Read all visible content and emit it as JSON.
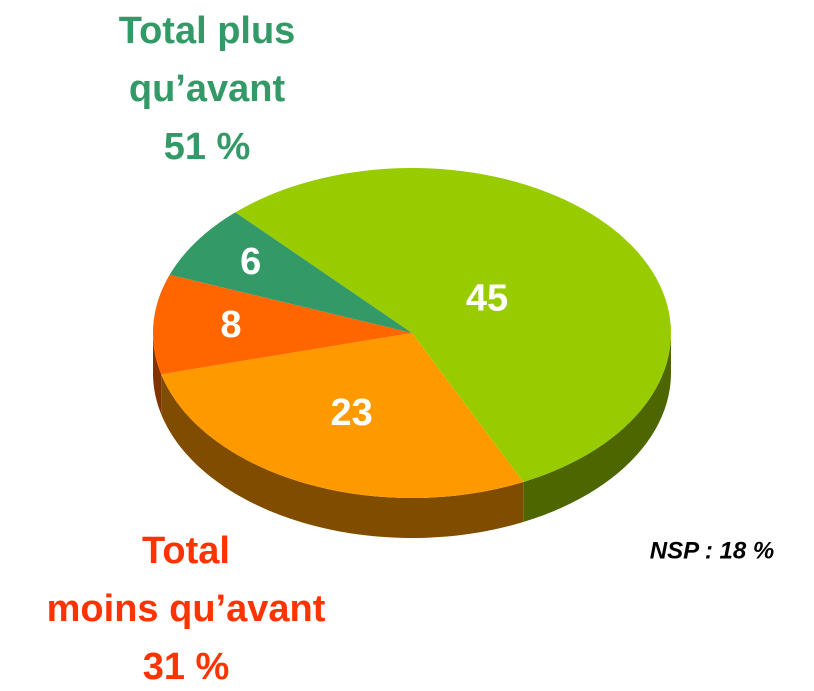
{
  "chart_data": {
    "type": "pie",
    "values": [
      45,
      23,
      8,
      6
    ],
    "colors": [
      "#99cc00",
      "#ff9900",
      "#ff6600",
      "#339966"
    ],
    "side_colors": [
      "#4d6600",
      "#804d00",
      "#803300",
      "#1a4d33"
    ],
    "annotations": [
      {
        "lines": [
          "Total plus",
          "qu’avant",
          "51 %"
        ],
        "color": "#339966"
      },
      {
        "lines": [
          "Total",
          "moins qu’avant",
          "31 %"
        ],
        "color": "#ff3300"
      },
      {
        "lines": [
          "NSP : 18 %"
        ],
        "color": "#000000"
      }
    ]
  }
}
